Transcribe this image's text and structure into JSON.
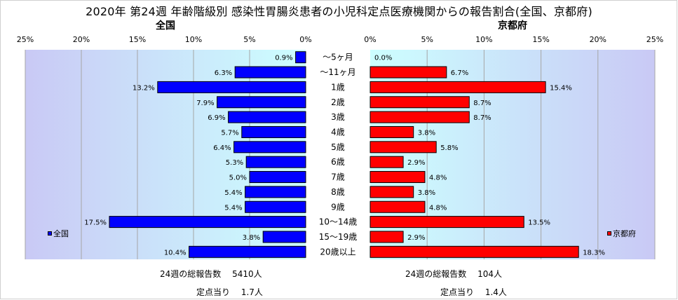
{
  "title": "2020年 第24週 年齢階級別 感染性胃腸炎患者の小児科定点医療機関からの報告割合(全国、京都府)",
  "colors": {
    "plot_bg_start": "#c9c9f5",
    "plot_bg_end": "#ccffff",
    "national_bar": "#0000ff",
    "kyoto_bar": "#ff0000",
    "gridline": "#a6a6a6"
  },
  "footer": {
    "national_total": "24週の総報告数　 5410人",
    "national_per_site": "定点当り　 1.7人",
    "kyoto_total": "24週の総報告数　 104人",
    "kyoto_per_site": "定点当り　 1.4人"
  },
  "chart_data": [
    {
      "type": "bar",
      "orientation": "horizontal",
      "title": "全国",
      "direction": "right-to-left",
      "categories": [
        "～5ヶ月",
        "～11ヶ月",
        "1歳",
        "2歳",
        "3歳",
        "4歳",
        "5歳",
        "6歳",
        "7歳",
        "8歳",
        "9歳",
        "10～14歳",
        "15～19歳",
        "20歳以上"
      ],
      "series": [
        {
          "name": "全国",
          "values": [
            0.9,
            6.3,
            13.2,
            7.9,
            6.9,
            5.7,
            6.4,
            5.3,
            5.0,
            5.4,
            5.4,
            17.5,
            3.8,
            10.4
          ],
          "labels": [
            "0.9%",
            "6.3%",
            "13.2%",
            "7.9%",
            "6.9%",
            "5.7%",
            "6.4%",
            "5.3%",
            "5.0%",
            "5.4%",
            "5.4%",
            "17.5%",
            "3.8%",
            "10.4%"
          ]
        }
      ],
      "xlim": [
        0,
        25
      ],
      "xticks": [
        "0%",
        "5%",
        "10%",
        "15%",
        "20%",
        "25%"
      ],
      "grid": true,
      "legend_position": "bottom-left"
    },
    {
      "type": "bar",
      "orientation": "horizontal",
      "title": "京都府",
      "direction": "left-to-right",
      "categories": [
        "～5ヶ月",
        "～11ヶ月",
        "1歳",
        "2歳",
        "3歳",
        "4歳",
        "5歳",
        "6歳",
        "7歳",
        "8歳",
        "9歳",
        "10～14歳",
        "15～19歳",
        "20歳以上"
      ],
      "series": [
        {
          "name": "京都府",
          "values": [
            0.0,
            6.7,
            15.4,
            8.7,
            8.7,
            3.8,
            5.8,
            2.9,
            4.8,
            3.8,
            4.8,
            13.5,
            2.9,
            18.3
          ],
          "labels": [
            "0.0%",
            "6.7%",
            "15.4%",
            "8.7%",
            "8.7%",
            "3.8%",
            "5.8%",
            "2.9%",
            "4.8%",
            "3.8%",
            "4.8%",
            "13.5%",
            "2.9%",
            "18.3%"
          ]
        }
      ],
      "xlim": [
        0,
        25
      ],
      "xticks": [
        "0%",
        "5%",
        "10%",
        "15%",
        "20%",
        "25%"
      ],
      "grid": true,
      "legend_position": "bottom-right"
    }
  ]
}
